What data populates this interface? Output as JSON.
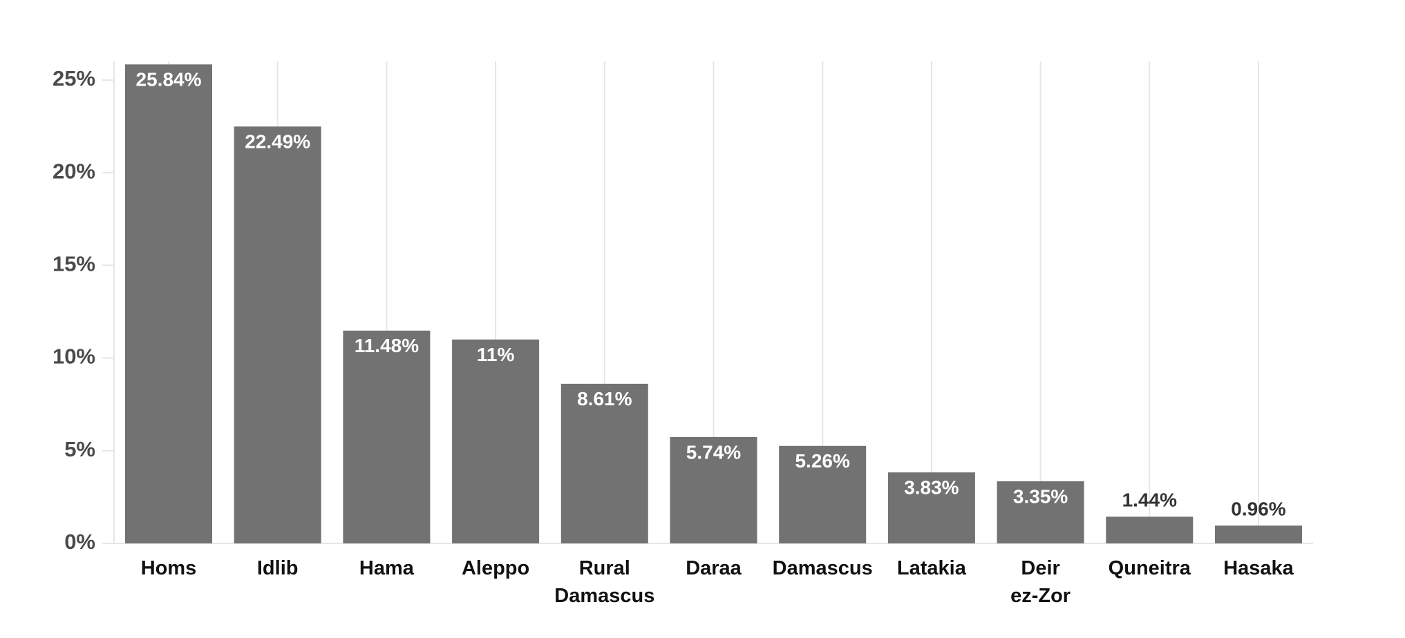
{
  "chart_data": {
    "type": "bar",
    "categories": [
      "Homs",
      "Idlib",
      "Hama",
      "Aleppo",
      "Rural\nDamascus",
      "Daraa",
      "Damascus",
      "Latakia",
      "Deir\nez-Zor",
      "Quneitra",
      "Hasaka"
    ],
    "values": [
      25.84,
      22.49,
      11.48,
      11,
      8.61,
      5.74,
      5.26,
      3.83,
      3.35,
      1.44,
      0.96
    ],
    "value_labels": [
      "25.84%",
      "22.49%",
      "11.48%",
      "11%",
      "8.61%",
      "5.74%",
      "5.26%",
      "3.83%",
      "3.35%",
      "1.44%",
      "0.96%"
    ],
    "color": "#737272",
    "ylim": [
      0,
      26
    ],
    "yticks": [
      {
        "value": 0,
        "label": "0%"
      },
      {
        "value": 5,
        "label": "5%"
      },
      {
        "value": 10,
        "label": "10%"
      },
      {
        "value": 15,
        "label": "15%"
      },
      {
        "value": 20,
        "label": "20%"
      },
      {
        "value": 25,
        "label": "25%"
      }
    ],
    "x_grid": true
  }
}
